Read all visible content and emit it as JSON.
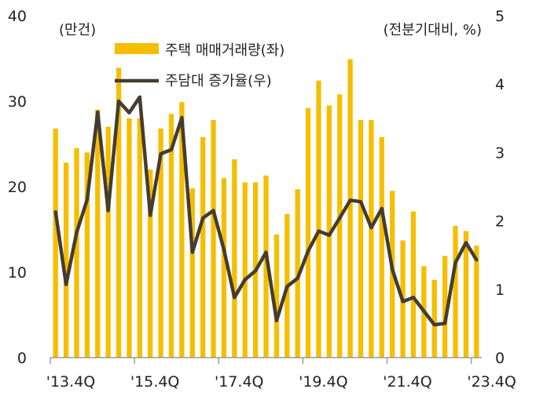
{
  "chart_data": {
    "type": "bar+line",
    "left_unit": "(만건)",
    "right_unit": "(전분기대비, %)",
    "x_tick_labels": [
      "'13.4Q",
      "'15.4Q",
      "'17.4Q",
      "'19.4Q",
      "'21.4Q",
      "'23.4Q"
    ],
    "x_tick_index": [
      0,
      8,
      16,
      24,
      32,
      40
    ],
    "y_left_ticks": [
      "0",
      "10",
      "20",
      "30",
      "40"
    ],
    "y_right_ticks": [
      "0",
      "1",
      "2",
      "3",
      "4",
      "5"
    ],
    "ylim_left": [
      0,
      40
    ],
    "ylim_right": [
      0,
      5
    ],
    "grid": false,
    "legend_position": "top-left",
    "series": [
      {
        "name": "주택 매매거래량(좌)",
        "axis": "left",
        "kind": "bar",
        "color": "#F5BE00",
        "values": [
          26.8,
          22.8,
          24.5,
          24.0,
          29.0,
          27.0,
          33.9,
          28.0,
          28.0,
          22.0,
          26.8,
          28.5,
          29.9,
          19.8,
          25.8,
          27.8,
          21.0,
          23.2,
          20.5,
          20.5,
          21.3,
          14.4,
          16.8,
          19.7,
          29.2,
          32.4,
          29.5,
          30.8,
          34.9,
          27.8,
          27.8,
          25.8,
          19.5,
          13.7,
          17.1,
          10.7,
          9.1,
          11.9,
          15.4,
          14.8,
          13.1
        ]
      },
      {
        "name": "주담대 증가율(우)",
        "axis": "right",
        "kind": "line",
        "color": "#453C30",
        "values": [
          2.13,
          1.07,
          1.83,
          2.31,
          3.59,
          2.15,
          3.75,
          3.58,
          3.81,
          2.08,
          2.98,
          3.04,
          3.51,
          1.54,
          2.04,
          2.15,
          1.58,
          0.88,
          1.14,
          1.27,
          1.54,
          0.54,
          1.04,
          1.16,
          1.56,
          1.85,
          1.79,
          2.04,
          2.3,
          2.28,
          1.9,
          2.18,
          1.29,
          0.82,
          0.88,
          0.68,
          0.48,
          0.5,
          1.39,
          1.68,
          1.43
        ]
      }
    ]
  }
}
